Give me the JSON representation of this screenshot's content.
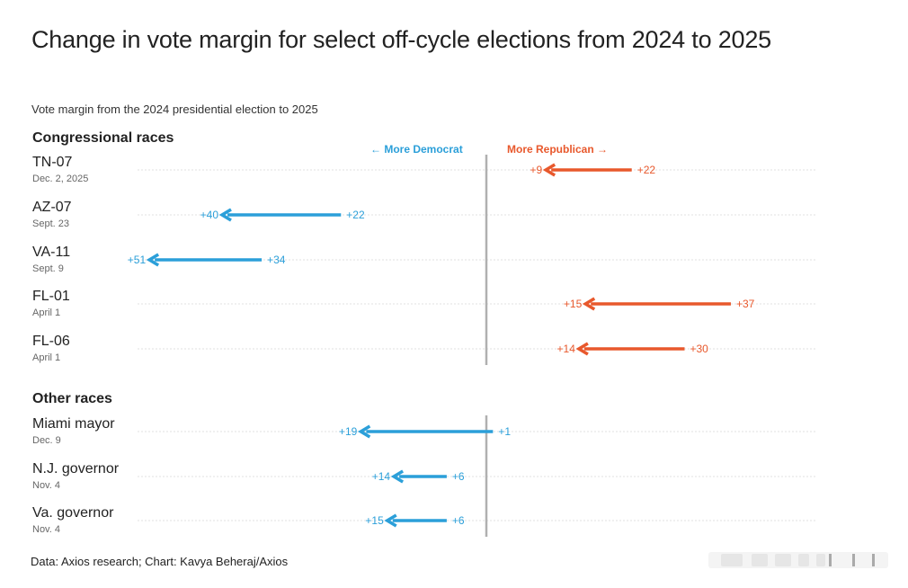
{
  "title": "Change in vote margin for select off-cycle elections from 2024 to 2025",
  "subtitle": "Vote margin from the 2024 presidential election to 2025",
  "legend": {
    "dem": "← More Democrat",
    "rep": "More Republican →"
  },
  "source": "Data: Axios research; Chart: Kavya Beheraj/Axios",
  "colors": {
    "dem": "#2b9fd9",
    "rep": "#e8582c",
    "axis": "#b0b0b0",
    "grid": "#e0e0e0"
  },
  "chart_data": [
    {
      "type": "arrow",
      "section": "Congressional races",
      "rows": [
        {
          "label": "TN-07",
          "date": "Dec. 2, 2025",
          "from": 22,
          "from_party": "R",
          "to": 9,
          "to_party": "R",
          "from_text": "+22",
          "to_text": "+9"
        },
        {
          "label": "AZ-07",
          "date": "Sept. 23",
          "from": 22,
          "from_party": "D",
          "to": 40,
          "to_party": "D",
          "from_text": "+22",
          "to_text": "+40"
        },
        {
          "label": "VA-11",
          "date": "Sept. 9",
          "from": 34,
          "from_party": "D",
          "to": 51,
          "to_party": "D",
          "from_text": "+34",
          "to_text": "+51"
        },
        {
          "label": "FL-01",
          "date": "April 1",
          "from": 37,
          "from_party": "R",
          "to": 15,
          "to_party": "R",
          "from_text": "+37",
          "to_text": "+15"
        },
        {
          "label": "FL-06",
          "date": "April 1",
          "from": 30,
          "from_party": "R",
          "to": 14,
          "to_party": "R",
          "from_text": "+30",
          "to_text": "+14"
        }
      ]
    },
    {
      "type": "arrow",
      "section": "Other races",
      "rows": [
        {
          "label": "Miami mayor",
          "date": "Dec. 9",
          "from": 1,
          "from_party": "R",
          "to": 19,
          "to_party": "D",
          "from_text": "+1",
          "to_text": "+19"
        },
        {
          "label": "N.J. governor",
          "date": "Nov. 4",
          "from": 6,
          "from_party": "D",
          "to": 14,
          "to_party": "D",
          "from_text": "+6",
          "to_text": "+14"
        },
        {
          "label": "Va. governor",
          "date": "Nov. 4",
          "from": 6,
          "from_party": "D",
          "to": 15,
          "to_party": "D",
          "from_text": "+6",
          "to_text": "+15"
        }
      ]
    }
  ]
}
